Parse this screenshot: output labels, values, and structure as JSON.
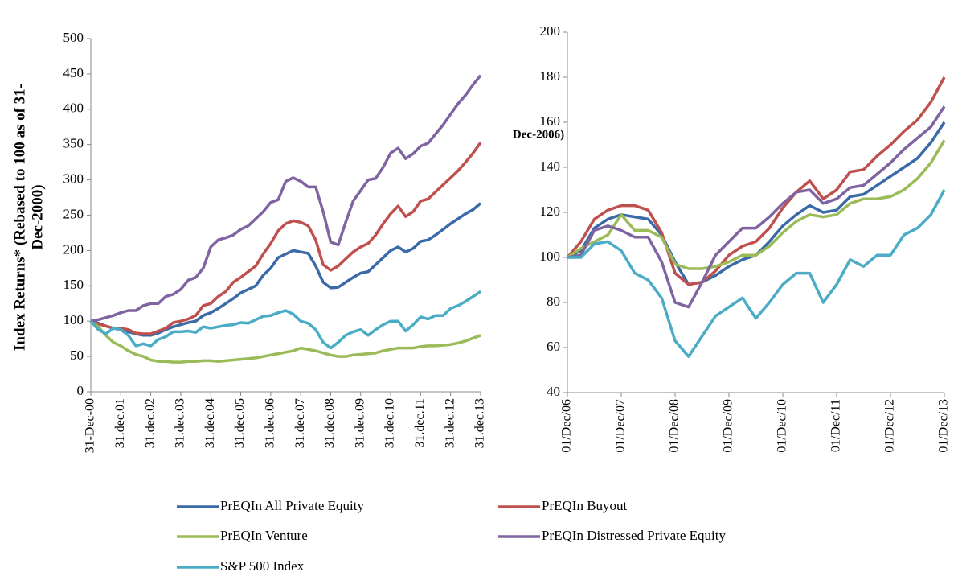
{
  "chart_data": [
    {
      "type": "line",
      "ylabel": [
        "Index Returns* (Rebased to 100 as of 31-",
        "Dec-2000)"
      ],
      "categories": [
        "31-Dec-00",
        null,
        null,
        null,
        "31.dec.01",
        null,
        null,
        null,
        "31.dec.02",
        null,
        null,
        null,
        "31.dec.03",
        null,
        null,
        null,
        "31.dec.04",
        null,
        null,
        null,
        "31.dec.05",
        null,
        null,
        null,
        "31.dec.06",
        null,
        null,
        null,
        "31.dec.07",
        null,
        null,
        null,
        "31.dec.08",
        null,
        null,
        null,
        "31.dec.09",
        null,
        null,
        null,
        "31.dec.10",
        null,
        null,
        null,
        "31.dec.11",
        null,
        null,
        null,
        "31.dec.12",
        null,
        null,
        null,
        "31.dec.13"
      ],
      "ylim": [
        0,
        500
      ],
      "yticks": [
        0,
        50,
        100,
        150,
        200,
        250,
        300,
        350,
        400,
        450,
        500
      ],
      "series": [
        {
          "name": "PrEQIn All Private Equity",
          "color": "#3b6aa8",
          "values": [
            100,
            97,
            93,
            90,
            88,
            85,
            82,
            80,
            80,
            83,
            88,
            92,
            95,
            98,
            100,
            108,
            112,
            118,
            125,
            132,
            140,
            145,
            150,
            165,
            175,
            190,
            195,
            200,
            198,
            196,
            178,
            155,
            147,
            148,
            155,
            162,
            168,
            170,
            180,
            190,
            200,
            205,
            198,
            203,
            213,
            215,
            222,
            230,
            238,
            245,
            252,
            258,
            267
          ]
        },
        {
          "name": "PrEQIn Buyout",
          "color": "#c0504d",
          "values": [
            100,
            96,
            93,
            90,
            90,
            88,
            83,
            82,
            82,
            86,
            90,
            98,
            100,
            103,
            108,
            122,
            125,
            135,
            142,
            155,
            162,
            170,
            178,
            195,
            210,
            228,
            238,
            242,
            240,
            235,
            215,
            180,
            172,
            178,
            188,
            198,
            205,
            210,
            222,
            238,
            252,
            263,
            248,
            255,
            270,
            273,
            283,
            293,
            303,
            313,
            325,
            338,
            353
          ]
        },
        {
          "name": "PrEQIn Venture",
          "color": "#9bbb59",
          "values": [
            100,
            92,
            80,
            70,
            65,
            58,
            53,
            50,
            45,
            43,
            43,
            42,
            42,
            43,
            43,
            44,
            44,
            43,
            44,
            45,
            46,
            47,
            48,
            50,
            52,
            54,
            56,
            58,
            62,
            60,
            58,
            55,
            52,
            50,
            50,
            52,
            53,
            54,
            55,
            58,
            60,
            62,
            62,
            62,
            64,
            65,
            65,
            66,
            67,
            69,
            72,
            76,
            80
          ]
        },
        {
          "name": "PrEQIn Distressed Private Equity",
          "color": "#8064a2",
          "values": [
            100,
            102,
            105,
            108,
            112,
            115,
            115,
            122,
            125,
            125,
            135,
            138,
            145,
            158,
            162,
            175,
            205,
            215,
            218,
            222,
            230,
            235,
            245,
            255,
            268,
            272,
            298,
            303,
            298,
            290,
            290,
            255,
            212,
            208,
            240,
            270,
            285,
            300,
            302,
            318,
            338,
            345,
            330,
            337,
            348,
            352,
            365,
            378,
            393,
            408,
            420,
            435,
            448
          ]
        },
        {
          "name": "S&P 500 Index",
          "color": "#4bacc6",
          "values": [
            100,
            88,
            82,
            90,
            88,
            80,
            65,
            68,
            65,
            74,
            78,
            85,
            85,
            86,
            84,
            92,
            90,
            92,
            94,
            95,
            98,
            97,
            102,
            107,
            108,
            112,
            115,
            110,
            100,
            97,
            88,
            70,
            62,
            70,
            80,
            85,
            88,
            80,
            88,
            95,
            100,
            100,
            86,
            95,
            106,
            103,
            108,
            108,
            118,
            122,
            128,
            135,
            142
          ]
        }
      ]
    },
    {
      "type": "line",
      "ylabel": "Dec-2006)",
      "categories": [
        "01/Dec/06",
        null,
        null,
        null,
        "01/Dec/07",
        null,
        null,
        null,
        "01/Dec/08",
        null,
        null,
        null,
        "01/Dec/09",
        null,
        null,
        null,
        "01/Dec/10",
        null,
        null,
        null,
        "01/Dec/11",
        null,
        null,
        null,
        "01/Dec/12",
        null,
        null,
        null,
        "01/Dec/13"
      ],
      "ylim": [
        40,
        200
      ],
      "yticks": [
        40,
        60,
        80,
        100,
        120,
        140,
        160,
        180,
        200
      ],
      "series": [
        {
          "color": "#3b6aa8",
          "values": [
            100,
            103,
            113,
            117,
            119,
            118,
            117,
            110,
            98,
            88,
            89,
            92,
            96,
            99,
            101,
            107,
            114,
            119,
            123,
            120,
            121,
            127,
            128,
            132,
            136,
            140,
            144,
            151,
            160
          ]
        },
        {
          "color": "#c0504d",
          "values": [
            100,
            107,
            117,
            121,
            123,
            123,
            121,
            111,
            93,
            88,
            89,
            94,
            101,
            105,
            107,
            113,
            122,
            129,
            134,
            126,
            130,
            138,
            139,
            145,
            150,
            156,
            161,
            169,
            180
          ]
        },
        {
          "color": "#9bbb59",
          "values": [
            100,
            104,
            107,
            110,
            119,
            112,
            112,
            109,
            97,
            95,
            95,
            96,
            98,
            101,
            101,
            105,
            111,
            116,
            119,
            118,
            119,
            124,
            126,
            126,
            127,
            130,
            135,
            142,
            152
          ]
        },
        {
          "color": "#8064a2",
          "values": [
            100,
            101,
            112,
            114,
            112,
            109,
            109,
            98,
            80,
            78,
            89,
            101,
            107,
            113,
            113,
            118,
            124,
            129,
            130,
            124,
            126,
            131,
            132,
            137,
            142,
            148,
            153,
            158,
            167
          ]
        },
        {
          "color": "#4bacc6",
          "values": [
            100,
            100,
            106,
            107,
            103,
            93,
            90,
            82,
            63,
            56,
            65,
            74,
            78,
            82,
            73,
            80,
            88,
            93,
            93,
            80,
            88,
            99,
            96,
            101,
            101,
            110,
            113,
            119,
            130
          ]
        }
      ]
    }
  ]
}
